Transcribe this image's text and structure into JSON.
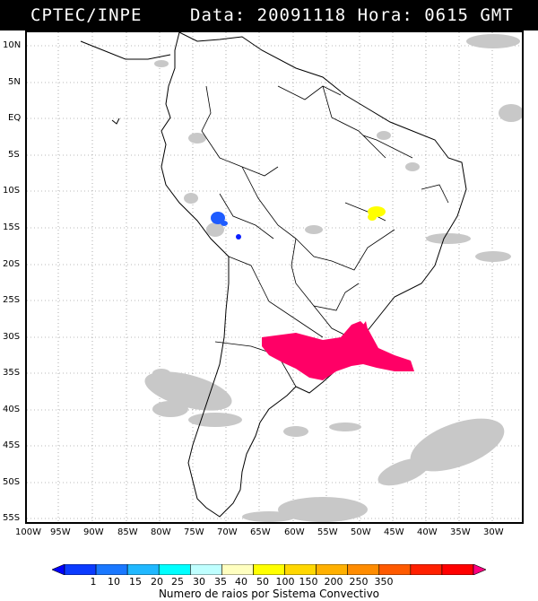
{
  "header": {
    "source": "CPTEC/INPE",
    "datetime": "Data: 20091118 Hora: 0615 GMT"
  },
  "map": {
    "lat_labels": [
      "10N",
      "5N",
      "EQ",
      "5S",
      "10S",
      "15S",
      "20S",
      "25S",
      "30S",
      "35S",
      "40S",
      "45S",
      "50S",
      "55S"
    ],
    "lon_labels": [
      "100W",
      "95W",
      "90W",
      "85W",
      "80W",
      "75W",
      "70W",
      "65W",
      "60W",
      "55W",
      "50W",
      "45W",
      "40W",
      "35W",
      "30W"
    ],
    "colors": {
      "land_border": "#000000",
      "cloud_gray": "#bdbdbd",
      "grid": "#777777"
    },
    "systems": [
      {
        "name": "blue-system-peru",
        "color": "#1f5cff"
      },
      {
        "name": "yellow-system-bahia",
        "color": "#ffff00"
      },
      {
        "name": "magenta-system-south",
        "color": "#ff0066"
      }
    ]
  },
  "colorbar": {
    "levels": [
      "1",
      "10",
      "15",
      "20",
      "25",
      "30",
      "35",
      "40",
      "50",
      "100",
      "150",
      "200",
      "250",
      "350"
    ],
    "colors": [
      "#0000ff",
      "#0b3bff",
      "#1a78ff",
      "#20b8ff",
      "#00ffff",
      "#bfffff",
      "#ffffc0",
      "#ffff00",
      "#ffd700",
      "#ffb000",
      "#ff8c00",
      "#ff5a00",
      "#ff2000",
      "#ff0000",
      "#ff0080"
    ],
    "title": "Numero de raios por Sistema Convectivo"
  }
}
